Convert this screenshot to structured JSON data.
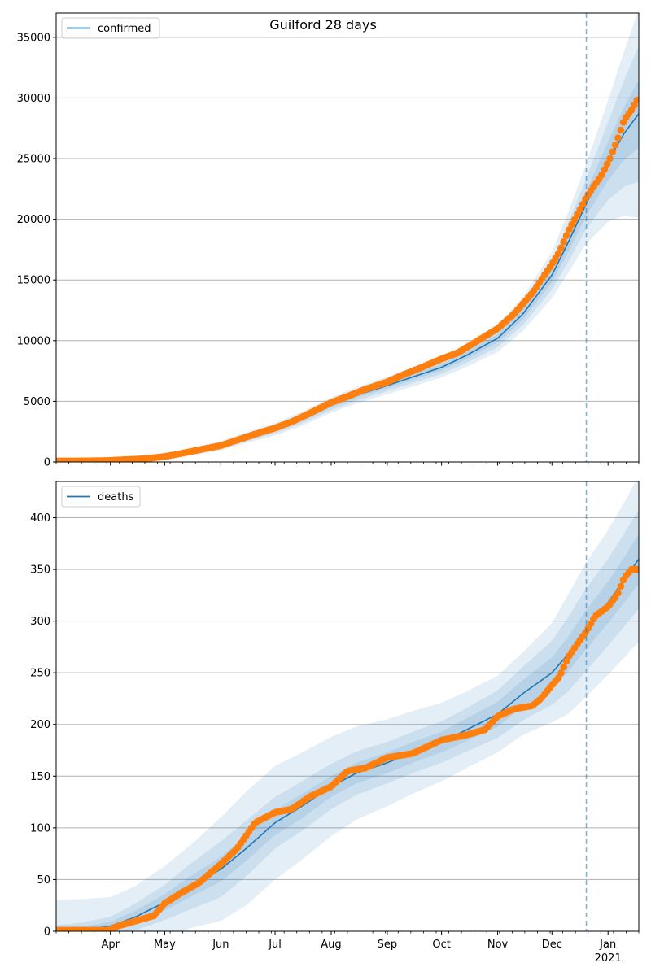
{
  "figure": {
    "title": "Guilford 28 days"
  },
  "colors": {
    "line": "#1f77b4",
    "points": "#ff7f0e",
    "band": "#1f77b4",
    "grid": "#b0b0b0",
    "forecast_line": "#1f77b4"
  },
  "chart_data": [
    {
      "type": "line",
      "legend": "confirmed",
      "legend_position": "top-left",
      "grid": "horizontal",
      "x_axis": {
        "type": "date",
        "range": [
          "2020-03-02",
          "2021-01-18"
        ],
        "tick_labels": [
          {
            "date": "2020-04-01",
            "label": "Apr"
          },
          {
            "date": "2020-05-01",
            "label": "May"
          },
          {
            "date": "2020-06-01",
            "label": "Jun"
          },
          {
            "date": "2020-07-01",
            "label": "Jul"
          },
          {
            "date": "2020-08-01",
            "label": "Aug"
          },
          {
            "date": "2020-09-01",
            "label": "Sep"
          },
          {
            "date": "2020-10-01",
            "label": "Oct"
          },
          {
            "date": "2020-11-01",
            "label": "Nov"
          },
          {
            "date": "2020-12-01",
            "label": "Dec"
          },
          {
            "date": "2021-01-01",
            "label": "Jan",
            "sublabel": "2021"
          }
        ]
      },
      "ylim": [
        0,
        37000
      ],
      "y_ticks": [
        0,
        5000,
        10000,
        15000,
        20000,
        25000,
        30000,
        35000
      ],
      "forecast_start": "2020-12-20",
      "model_curve": {
        "x": [
          "2020-03-02",
          "2020-03-15",
          "2020-04-01",
          "2020-04-15",
          "2020-05-01",
          "2020-05-15",
          "2020-06-01",
          "2020-06-15",
          "2020-07-01",
          "2020-07-15",
          "2020-08-01",
          "2020-08-15",
          "2020-09-01",
          "2020-09-15",
          "2020-10-01",
          "2020-10-15",
          "2020-11-01",
          "2020-11-15",
          "2020-12-01",
          "2020-12-10",
          "2020-12-20",
          "2021-01-01",
          "2021-01-10",
          "2021-01-18"
        ],
        "y": [
          0,
          20,
          80,
          200,
          450,
          800,
          1350,
          2000,
          2700,
          3500,
          4700,
          5500,
          6300,
          7000,
          7800,
          8800,
          10200,
          12200,
          15400,
          18100,
          21300,
          24800,
          27100,
          28700
        ],
        "band_widths": [
          [
            0,
            20,
            40,
            60,
            80,
            100,
            130,
            150,
            170,
            180,
            200,
            210,
            220,
            240,
            260,
            300,
            360,
            450,
            600,
            800,
            1000,
            1600,
            2200,
            2800
          ],
          [
            0,
            40,
            80,
            120,
            160,
            200,
            260,
            300,
            340,
            380,
            420,
            440,
            460,
            500,
            540,
            620,
            740,
            900,
            1200,
            1600,
            2100,
            3200,
            4400,
            5600
          ],
          [
            0,
            60,
            120,
            180,
            240,
            300,
            390,
            450,
            520,
            580,
            640,
            680,
            720,
            780,
            840,
            960,
            1140,
            1400,
            1900,
            2500,
            3300,
            5000,
            6800,
            8600
          ]
        ]
      },
      "observed": {
        "x": [
          "2020-03-02",
          "2020-03-10",
          "2020-03-20",
          "2020-03-31",
          "2020-04-10",
          "2020-04-20",
          "2020-05-01",
          "2020-05-10",
          "2020-05-20",
          "2020-06-01",
          "2020-06-10",
          "2020-06-20",
          "2020-07-01",
          "2020-07-10",
          "2020-07-20",
          "2020-08-01",
          "2020-08-10",
          "2020-08-20",
          "2020-09-01",
          "2020-09-10",
          "2020-09-20",
          "2020-10-01",
          "2020-10-10",
          "2020-10-20",
          "2020-11-01",
          "2020-11-10",
          "2020-11-20",
          "2020-12-01",
          "2020-12-05",
          "2020-12-10",
          "2020-12-15",
          "2020-12-20",
          "2020-12-24",
          "2020-12-28",
          "2021-01-02",
          "2021-01-06",
          "2021-01-10",
          "2021-01-14",
          "2021-01-18"
        ],
        "y": [
          80,
          80,
          90,
          120,
          200,
          260,
          450,
          700,
          1000,
          1350,
          1800,
          2300,
          2800,
          3300,
          4000,
          4900,
          5400,
          6000,
          6600,
          7200,
          7800,
          8500,
          9000,
          9900,
          11000,
          12200,
          13900,
          16300,
          17300,
          19000,
          20400,
          21800,
          22700,
          23500,
          25000,
          26500,
          28200,
          29000,
          30100
        ]
      }
    },
    {
      "type": "line",
      "legend": "deaths",
      "legend_position": "top-left",
      "grid": "horizontal",
      "x_axis": {
        "type": "date",
        "range": [
          "2020-03-02",
          "2021-01-18"
        ],
        "tick_labels": [
          {
            "date": "2020-04-01",
            "label": "Apr"
          },
          {
            "date": "2020-05-01",
            "label": "May"
          },
          {
            "date": "2020-06-01",
            "label": "Jun"
          },
          {
            "date": "2020-07-01",
            "label": "Jul"
          },
          {
            "date": "2020-08-01",
            "label": "Aug"
          },
          {
            "date": "2020-09-01",
            "label": "Sep"
          },
          {
            "date": "2020-10-01",
            "label": "Oct"
          },
          {
            "date": "2020-11-01",
            "label": "Nov"
          },
          {
            "date": "2020-12-01",
            "label": "Dec"
          },
          {
            "date": "2021-01-01",
            "label": "Jan",
            "sublabel": "2021"
          }
        ]
      },
      "ylim": [
        0,
        435
      ],
      "y_ticks": [
        0,
        50,
        100,
        150,
        200,
        250,
        300,
        350,
        400
      ],
      "forecast_start": "2020-12-20",
      "model_curve": {
        "x": [
          "2020-03-02",
          "2020-03-15",
          "2020-04-01",
          "2020-04-15",
          "2020-05-01",
          "2020-05-15",
          "2020-06-01",
          "2020-06-15",
          "2020-07-01",
          "2020-07-15",
          "2020-08-01",
          "2020-08-15",
          "2020-09-01",
          "2020-09-15",
          "2020-10-01",
          "2020-10-15",
          "2020-11-01",
          "2020-11-15",
          "2020-12-01",
          "2020-12-10",
          "2020-12-20",
          "2021-01-01",
          "2021-01-10",
          "2021-01-18"
        ],
        "y": [
          0,
          1,
          5,
          14,
          28,
          43,
          60,
          80,
          105,
          120,
          140,
          153,
          163,
          173,
          183,
          195,
          210,
          230,
          250,
          268,
          292,
          318,
          340,
          360
        ],
        "band_widths": [
          [
            2,
            3,
            4,
            6,
            8,
            10,
            12,
            12,
            12,
            12,
            10,
            10,
            10,
            10,
            10,
            11,
            12,
            13,
            15,
            17,
            19,
            20,
            22,
            24
          ],
          [
            6,
            7,
            9,
            13,
            17,
            22,
            27,
            27,
            25,
            24,
            22,
            21,
            20,
            20,
            20,
            21,
            23,
            26,
            31,
            36,
            40,
            42,
            45,
            48
          ],
          [
            30,
            30,
            28,
            30,
            35,
            40,
            50,
            55,
            55,
            52,
            48,
            45,
            42,
            40,
            38,
            37,
            37,
            40,
            48,
            58,
            65,
            70,
            75,
            80
          ]
        ]
      },
      "observed": {
        "x": [
          "2020-03-02",
          "2020-03-15",
          "2020-03-31",
          "2020-04-05",
          "2020-04-15",
          "2020-04-25",
          "2020-05-01",
          "2020-05-10",
          "2020-05-20",
          "2020-06-01",
          "2020-06-10",
          "2020-06-20",
          "2020-07-01",
          "2020-07-10",
          "2020-07-20",
          "2020-08-01",
          "2020-08-10",
          "2020-08-20",
          "2020-09-01",
          "2020-09-15",
          "2020-10-01",
          "2020-10-15",
          "2020-10-25",
          "2020-11-01",
          "2020-11-10",
          "2020-11-20",
          "2020-11-25",
          "2020-12-01",
          "2020-12-05",
          "2020-12-10",
          "2020-12-15",
          "2020-12-20",
          "2020-12-25",
          "2021-01-01",
          "2021-01-06",
          "2021-01-10",
          "2021-01-14",
          "2021-01-18"
        ],
        "y": [
          1,
          1,
          1,
          5,
          10,
          15,
          27,
          37,
          47,
          65,
          80,
          105,
          115,
          118,
          130,
          140,
          155,
          158,
          168,
          172,
          185,
          190,
          195,
          208,
          215,
          218,
          225,
          238,
          246,
          265,
          278,
          290,
          305,
          314,
          325,
          342,
          350,
          350
        ]
      }
    }
  ]
}
